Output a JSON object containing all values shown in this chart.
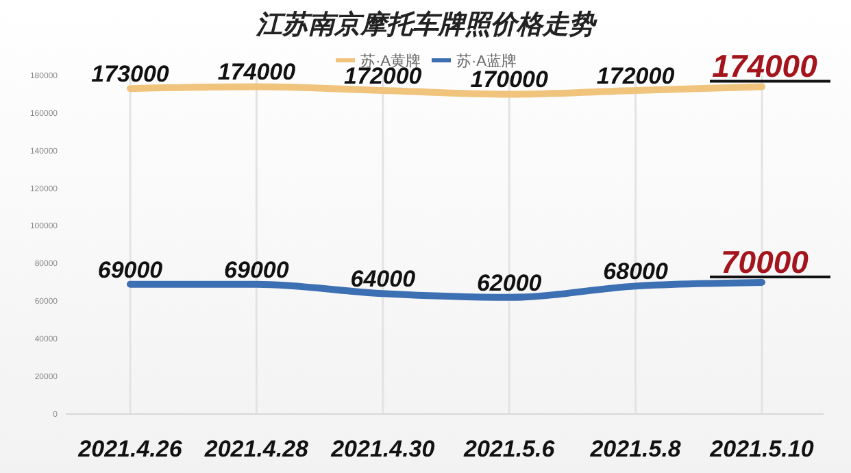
{
  "chart_data": {
    "type": "line",
    "title": "江苏南京摩托车牌照价格走势",
    "categories": [
      "2021.4.26",
      "2021.4.28",
      "2021.4.30",
      "2021.5.6",
      "2021.5.8",
      "2021.5.10"
    ],
    "series": [
      {
        "name": "苏·A黄牌",
        "color": "#f0c47c",
        "values": [
          173000,
          174000,
          172000,
          170000,
          172000,
          174000
        ]
      },
      {
        "name": "苏·A蓝牌",
        "color": "#3d6fb3",
        "values": [
          69000,
          69000,
          64000,
          62000,
          68000,
          70000
        ]
      }
    ],
    "ylim": [
      0,
      180000
    ],
    "yticks": [
      0,
      20000,
      40000,
      60000,
      80000,
      100000,
      120000,
      140000,
      160000,
      180000
    ],
    "grid": "x",
    "legend": "top",
    "data_labels": true,
    "marker": "none",
    "line_style": "solid"
  }
}
